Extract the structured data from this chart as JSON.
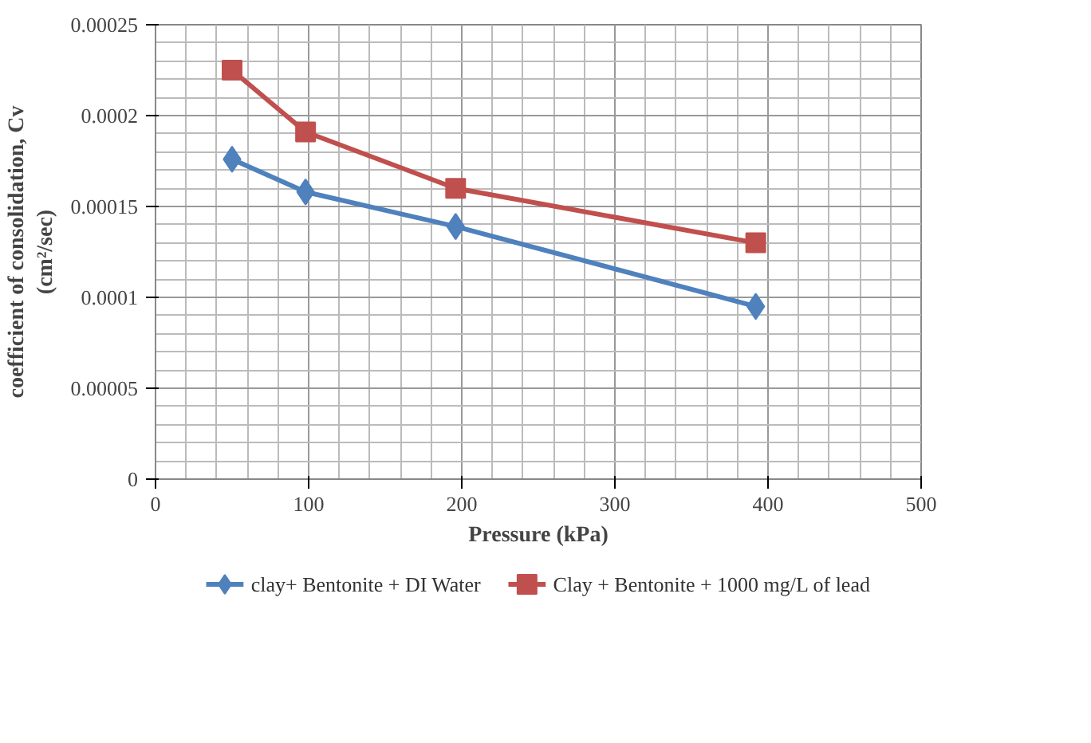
{
  "chart_data": {
    "type": "line",
    "xlabel": "Pressure (kPa)",
    "ylabel": "coefficient of consolidation, Cv\n(cm²/sec)",
    "x": [
      50,
      98,
      196,
      392
    ],
    "series": [
      {
        "name": "clay+ Bentonite + DI Water",
        "color": "#4f81bd",
        "marker": "diamond",
        "values": [
          0.000176,
          0.000158,
          0.000139,
          9.5e-05
        ]
      },
      {
        "name": "Clay + Bentonite + 1000 mg/L of lead",
        "color": "#c0504d",
        "marker": "square",
        "values": [
          0.000225,
          0.000191,
          0.00016,
          0.00013
        ]
      }
    ],
    "xlim": [
      0,
      500
    ],
    "xticks": [
      0,
      100,
      200,
      300,
      400,
      500
    ],
    "ylim": [
      0,
      0.00025
    ],
    "yticks": [
      {
        "value": 0,
        "label": "0"
      },
      {
        "value": 5e-05,
        "label": "0.00005"
      },
      {
        "value": 0.0001,
        "label": "0.0001"
      },
      {
        "value": 0.00015,
        "label": "0.00015"
      },
      {
        "value": 0.0002,
        "label": "0.0002"
      },
      {
        "value": 0.00025,
        "label": "0.00025"
      }
    ],
    "grid": true,
    "legend": "bottom",
    "line_style": "solid"
  }
}
